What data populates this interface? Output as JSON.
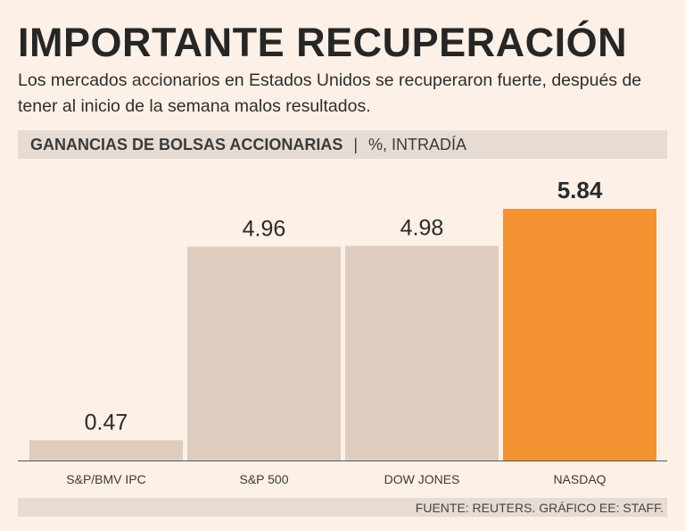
{
  "chart_data": {
    "type": "bar",
    "title": "IMPORTANTE RECUPERACIÓN",
    "subtitle": "Los mercados accionarios en Estados Unidos se recuperaron fuerte, después de tener al inicio de la semana malos resultados.",
    "header_label": "GANANCIAS DE BOLSAS ACCIONARIAS",
    "header_separator": "|",
    "header_unit": "%, INTRADÍA",
    "categories": [
      "S&P/BMV IPC",
      "S&P 500",
      "DOW JONES",
      "NASDAQ"
    ],
    "values": [
      0.47,
      4.96,
      4.98,
      5.84
    ],
    "value_labels": [
      "0.47",
      "4.96",
      "4.98",
      "5.84"
    ],
    "highlight_index": 3,
    "ylim": [
      0,
      5.84
    ],
    "grid": false,
    "source": "FUENTE: REUTERS. GRÁFICO EE: STAFF."
  },
  "colors": {
    "bar": "#decdbe",
    "highlight": "#f39331",
    "background": "#fdf0e6",
    "band": "#e7dcd3",
    "axis": "#555555",
    "text": "#2b2b2b"
  }
}
